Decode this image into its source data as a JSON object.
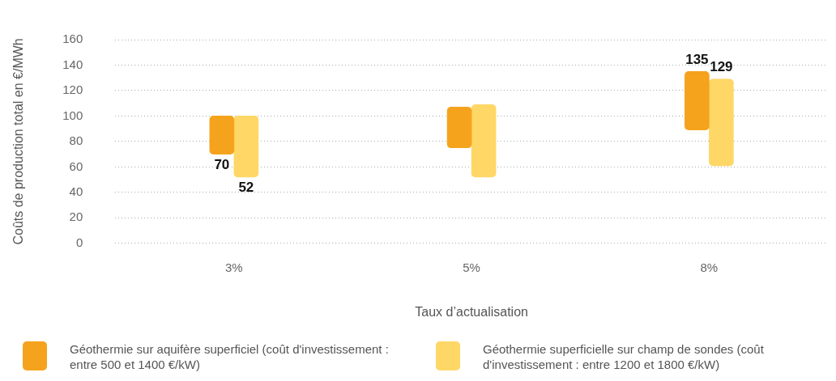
{
  "chart_data": {
    "type": "bar",
    "xlabel": "Taux d’actualisation",
    "ylabel": "Coûts de production total en €/MWh",
    "categories": [
      "3%",
      "5%",
      "8%"
    ],
    "series": [
      {
        "name": "Géothermie sur aquifère superficiel (coût d'investissement : entre 500 et 1400 €/kW)",
        "color": "#f5a31d",
        "base": [
          70,
          75,
          89
        ],
        "values": [
          30,
          32,
          46
        ]
      },
      {
        "name": "Géothermie superficielle sur champ de sondes (coût d'investissement : entre 1200 et 1800 €/kW)",
        "color": "#fed766",
        "base": [
          52,
          52,
          61
        ],
        "values": [
          48,
          57,
          68
        ]
      }
    ],
    "ylim": [
      0,
      160
    ],
    "yticks": [
      0,
      20,
      40,
      60,
      80,
      100,
      120,
      140,
      160
    ],
    "grid": "y",
    "legend": "bottom",
    "annotations": [
      {
        "text": "70",
        "x": "3%",
        "y": 70
      },
      {
        "text": "52",
        "x": "3%",
        "y": 52
      },
      {
        "text": "135",
        "x": "8%",
        "y": 135
      },
      {
        "text": "129",
        "x": "8%",
        "y": 129
      }
    ]
  }
}
